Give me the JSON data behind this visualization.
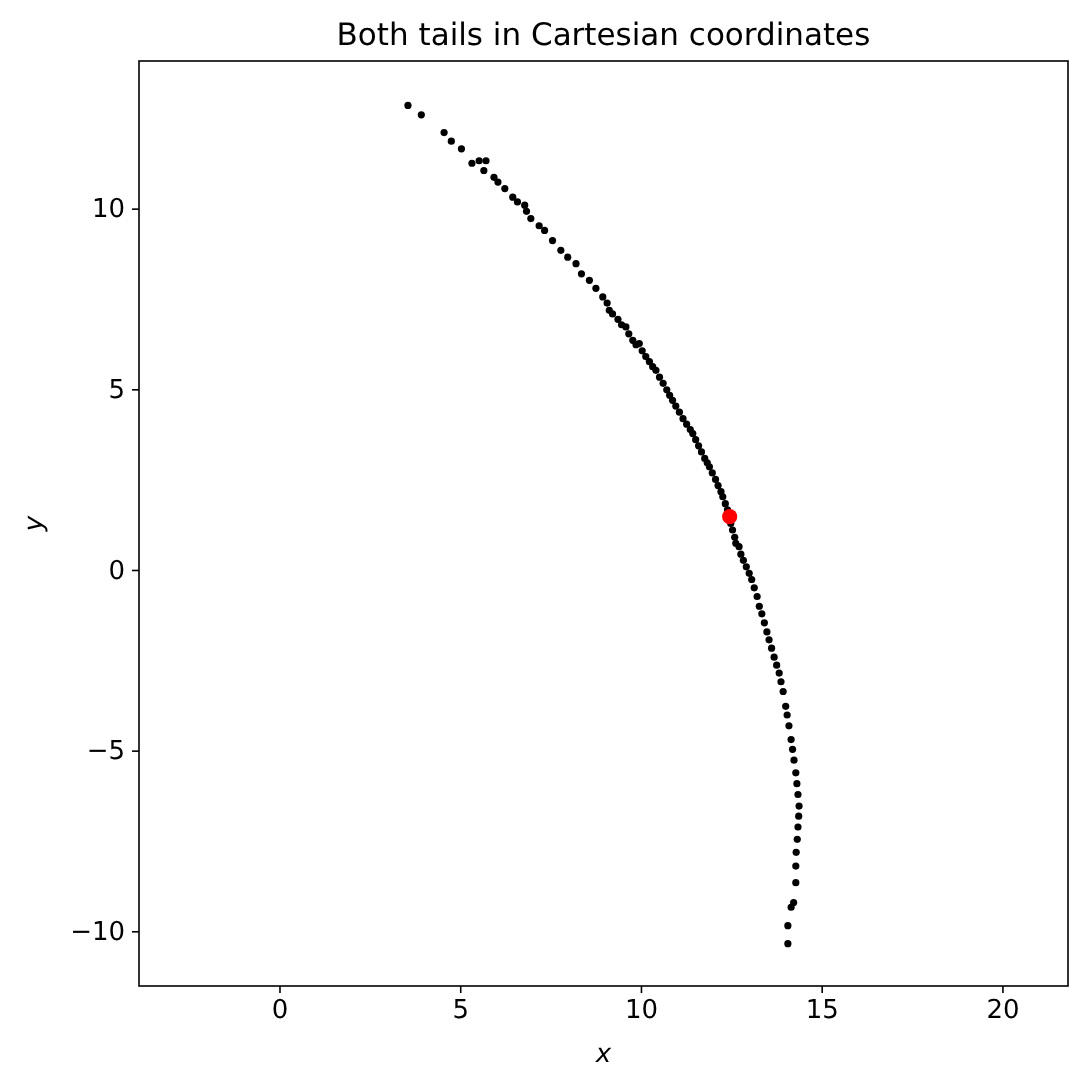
{
  "chart_data": {
    "type": "scatter",
    "title": "Both tails in Cartesian coordinates",
    "xlabel": "x",
    "ylabel": "y",
    "xlim": [
      -3.9,
      21.8
    ],
    "ylim": [
      -11.5,
      14.1
    ],
    "xticks": [
      0,
      5,
      10,
      15,
      20
    ],
    "yticks": [
      {
        "value": -10,
        "label": "−10"
      },
      {
        "value": -5,
        "label": "−5"
      },
      0,
      5,
      10
    ],
    "grid": false,
    "marker": "circle",
    "series": [
      {
        "color": "#000000",
        "x": [
          3.54,
          3.91,
          4.54,
          4.74,
          5.02,
          5.31,
          5.51,
          5.7,
          5.64,
          5.92,
          6.03,
          6.22,
          6.44,
          6.57,
          6.77,
          6.82,
          6.94,
          7.17,
          7.32,
          7.54,
          7.77,
          7.96,
          8.19,
          8.34,
          8.56,
          8.74,
          8.93,
          9.05,
          9.11,
          9.2,
          9.35,
          9.45,
          9.57,
          9.65,
          9.76,
          9.85,
          9.94,
          10.02,
          10.12,
          10.22,
          10.31,
          10.4,
          10.5,
          10.6,
          10.7,
          10.78,
          10.86,
          10.95,
          11.05,
          11.15,
          11.25,
          11.35,
          11.42,
          11.5,
          11.58,
          11.66,
          11.75,
          11.82,
          11.88,
          11.96,
          12.05,
          12.12,
          12.2,
          12.25,
          12.32,
          12.38,
          12.47,
          12.52,
          12.58,
          12.61,
          12.7,
          12.75,
          12.82,
          12.9,
          12.98,
          13.05,
          13.12,
          13.2,
          13.26,
          13.33,
          13.4,
          13.47,
          13.53,
          13.6,
          13.67,
          13.74,
          13.81,
          13.86,
          13.92,
          13.99,
          14.03,
          14.08,
          14.14,
          14.18,
          14.22,
          14.27,
          14.3,
          14.33,
          14.36,
          14.35,
          14.33,
          14.31,
          14.28,
          14.27,
          14.27,
          14.21,
          14.14,
          14.05,
          14.05
        ],
        "values": [
          12.87,
          12.61,
          12.12,
          11.88,
          11.67,
          11.27,
          11.34,
          11.34,
          11.07,
          10.88,
          10.75,
          10.57,
          10.33,
          10.2,
          10.11,
          9.94,
          9.74,
          9.54,
          9.41,
          9.13,
          8.86,
          8.67,
          8.49,
          8.21,
          8.03,
          7.81,
          7.57,
          7.4,
          7.2,
          7.1,
          6.95,
          6.8,
          6.74,
          6.55,
          6.37,
          6.25,
          6.28,
          6.08,
          5.92,
          5.78,
          5.64,
          5.54,
          5.35,
          5.18,
          5.0,
          4.85,
          4.71,
          4.55,
          4.38,
          4.2,
          4.05,
          3.9,
          3.79,
          3.62,
          3.45,
          3.28,
          3.1,
          2.98,
          2.87,
          2.7,
          2.52,
          2.35,
          2.18,
          2.04,
          1.85,
          1.68,
          1.3,
          1.12,
          0.92,
          0.75,
          0.66,
          0.45,
          0.28,
          0.1,
          -0.08,
          -0.25,
          -0.48,
          -0.72,
          -0.99,
          -1.2,
          -1.45,
          -1.7,
          -1.92,
          -2.15,
          -2.4,
          -2.62,
          -2.84,
          -3.08,
          -3.35,
          -3.76,
          -4.0,
          -4.3,
          -4.68,
          -4.95,
          -5.25,
          -5.6,
          -5.9,
          -6.2,
          -6.52,
          -6.8,
          -7.1,
          -7.44,
          -7.8,
          -8.18,
          -8.64,
          -9.19,
          -9.32,
          -9.83,
          -10.33
        ]
      },
      {
        "color": "#ff0000",
        "x": [
          12.44
        ],
        "values": [
          1.49
        ]
      }
    ]
  }
}
